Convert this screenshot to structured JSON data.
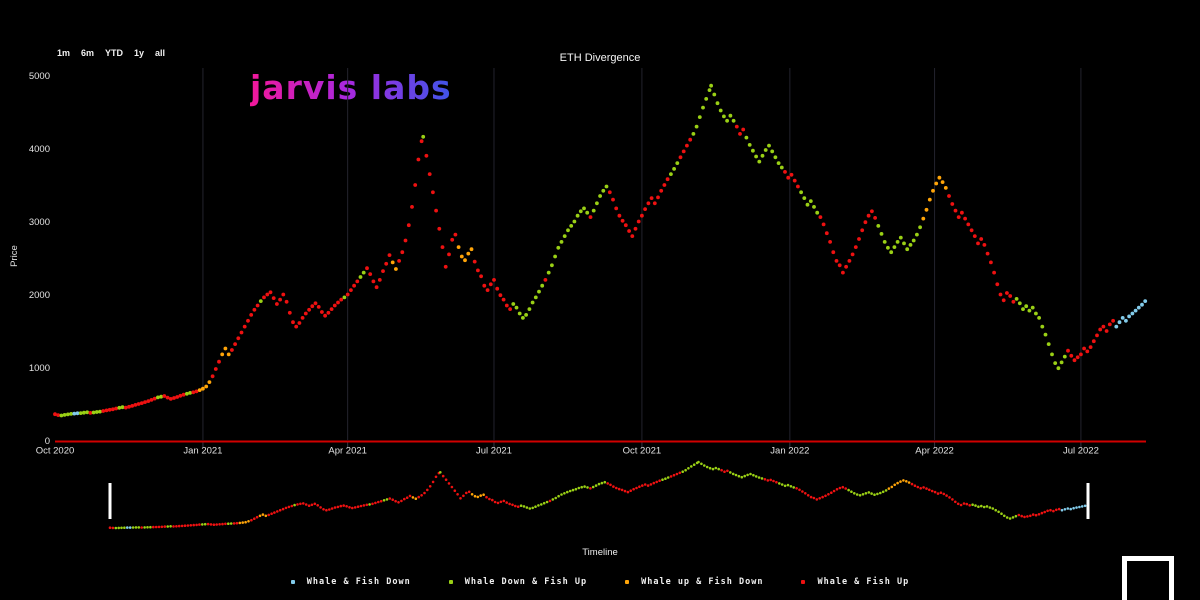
{
  "toolbar": {
    "ranges": [
      "1m",
      "6m",
      "YTD",
      "1y",
      "all"
    ]
  },
  "logo": {
    "text": "jarvis labs"
  },
  "timeline": {
    "label": "Timeline"
  },
  "chart_data": {
    "type": "scatter",
    "title": "ETH Divergence",
    "ylabel": "Price",
    "ylim": [
      0,
      5000
    ],
    "y_ticks": [
      0,
      1000,
      2000,
      3000,
      4000,
      5000
    ],
    "x_ticks": [
      {
        "label": "Oct 2020",
        "day": 0
      },
      {
        "label": "Jan 2021",
        "day": 92
      },
      {
        "label": "Apr 2021",
        "day": 182
      },
      {
        "label": "Jul 2021",
        "day": 273
      },
      {
        "label": "Oct 2021",
        "day": 365
      },
      {
        "label": "Jan 2022",
        "day": 457
      },
      {
        "label": "Apr 2022",
        "day": 547
      },
      {
        "label": "Jul 2022",
        "day": 638
      }
    ],
    "axis_line_color": "#d10000",
    "grid_color": "#23232d",
    "legend": [
      {
        "label": "Whale & Fish Down",
        "color": "#82cbea"
      },
      {
        "label": "Whale Down & Fish Up",
        "color": "#9ad015"
      },
      {
        "label": "Whale up & Fish Down",
        "color": "#ffa408"
      },
      {
        "label": "Whale & Fish Up",
        "color": "#ee1111"
      }
    ],
    "point_format": [
      "day_offset_from_first_tick",
      "price",
      "legend_category_index"
    ],
    "points": [
      [
        0,
        360,
        3
      ],
      [
        2,
        348,
        3
      ],
      [
        4,
        342,
        1
      ],
      [
        6,
        350,
        1
      ],
      [
        8,
        358,
        1
      ],
      [
        10,
        364,
        1
      ],
      [
        12,
        368,
        0
      ],
      [
        14,
        372,
        0
      ],
      [
        16,
        376,
        1
      ],
      [
        18,
        381,
        1
      ],
      [
        20,
        386,
        1
      ],
      [
        22,
        378,
        3
      ],
      [
        24,
        383,
        1
      ],
      [
        26,
        390,
        1
      ],
      [
        28,
        396,
        1
      ],
      [
        30,
        404,
        3
      ],
      [
        32,
        412,
        3
      ],
      [
        34,
        420,
        3
      ],
      [
        36,
        428,
        3
      ],
      [
        38,
        438,
        3
      ],
      [
        40,
        448,
        1
      ],
      [
        42,
        456,
        1
      ],
      [
        44,
        450,
        3
      ],
      [
        46,
        462,
        3
      ],
      [
        48,
        474,
        3
      ],
      [
        50,
        488,
        3
      ],
      [
        52,
        500,
        3
      ],
      [
        54,
        512,
        3
      ],
      [
        56,
        526,
        3
      ],
      [
        58,
        540,
        3
      ],
      [
        60,
        556,
        3
      ],
      [
        62,
        574,
        3
      ],
      [
        64,
        590,
        1
      ],
      [
        66,
        600,
        1
      ],
      [
        68,
        610,
        3
      ],
      [
        70,
        588,
        3
      ],
      [
        72,
        570,
        3
      ],
      [
        74,
        582,
        3
      ],
      [
        76,
        596,
        3
      ],
      [
        78,
        612,
        3
      ],
      [
        80,
        628,
        3
      ],
      [
        82,
        640,
        1
      ],
      [
        84,
        652,
        1
      ],
      [
        86,
        660,
        3
      ],
      [
        88,
        672,
        3
      ],
      [
        90,
        690,
        2
      ],
      [
        92,
        710,
        2
      ],
      [
        94,
        740,
        2
      ],
      [
        96,
        800,
        2
      ],
      [
        98,
        880,
        3
      ],
      [
        100,
        980,
        3
      ],
      [
        102,
        1080,
        3
      ],
      [
        104,
        1180,
        2
      ],
      [
        106,
        1260,
        2
      ],
      [
        108,
        1180,
        2
      ],
      [
        110,
        1240,
        3
      ],
      [
        112,
        1320,
        3
      ],
      [
        114,
        1400,
        3
      ],
      [
        116,
        1480,
        3
      ],
      [
        118,
        1560,
        3
      ],
      [
        120,
        1640,
        3
      ],
      [
        122,
        1720,
        3
      ],
      [
        124,
        1790,
        3
      ],
      [
        126,
        1850,
        3
      ],
      [
        128,
        1910,
        1
      ],
      [
        130,
        1960,
        3
      ],
      [
        132,
        2000,
        3
      ],
      [
        134,
        2030,
        3
      ],
      [
        136,
        1950,
        3
      ],
      [
        138,
        1870,
        3
      ],
      [
        140,
        1930,
        3
      ],
      [
        142,
        2000,
        3
      ],
      [
        144,
        1900,
        3
      ],
      [
        146,
        1750,
        3
      ],
      [
        148,
        1620,
        3
      ],
      [
        150,
        1560,
        3
      ],
      [
        152,
        1610,
        3
      ],
      [
        154,
        1680,
        3
      ],
      [
        156,
        1740,
        3
      ],
      [
        158,
        1790,
        3
      ],
      [
        160,
        1840,
        3
      ],
      [
        162,
        1880,
        3
      ],
      [
        164,
        1830,
        3
      ],
      [
        166,
        1760,
        3
      ],
      [
        168,
        1710,
        3
      ],
      [
        170,
        1750,
        3
      ],
      [
        172,
        1800,
        3
      ],
      [
        174,
        1850,
        3
      ],
      [
        176,
        1890,
        3
      ],
      [
        178,
        1930,
        3
      ],
      [
        180,
        1960,
        1
      ],
      [
        182,
        2000,
        3
      ],
      [
        184,
        2060,
        3
      ],
      [
        186,
        2120,
        3
      ],
      [
        188,
        2180,
        3
      ],
      [
        190,
        2240,
        1
      ],
      [
        192,
        2300,
        1
      ],
      [
        194,
        2360,
        3
      ],
      [
        196,
        2280,
        3
      ],
      [
        198,
        2180,
        3
      ],
      [
        200,
        2100,
        3
      ],
      [
        202,
        2200,
        3
      ],
      [
        204,
        2320,
        3
      ],
      [
        206,
        2420,
        3
      ],
      [
        208,
        2540,
        3
      ],
      [
        210,
        2440,
        2
      ],
      [
        212,
        2350,
        2
      ],
      [
        214,
        2460,
        3
      ],
      [
        216,
        2580,
        3
      ],
      [
        218,
        2740,
        3
      ],
      [
        220,
        2950,
        3
      ],
      [
        222,
        3200,
        3
      ],
      [
        224,
        3500,
        3
      ],
      [
        226,
        3850,
        3
      ],
      [
        228,
        4100,
        3
      ],
      [
        229,
        4160,
        1
      ],
      [
        231,
        3900,
        3
      ],
      [
        233,
        3650,
        3
      ],
      [
        235,
        3400,
        3
      ],
      [
        237,
        3150,
        3
      ],
      [
        239,
        2900,
        3
      ],
      [
        241,
        2650,
        3
      ],
      [
        243,
        2380,
        3
      ],
      [
        245,
        2550,
        3
      ],
      [
        247,
        2750,
        3
      ],
      [
        249,
        2820,
        3
      ],
      [
        251,
        2650,
        2
      ],
      [
        253,
        2520,
        2
      ],
      [
        255,
        2470,
        2
      ],
      [
        257,
        2560,
        2
      ],
      [
        259,
        2620,
        2
      ],
      [
        261,
        2450,
        3
      ],
      [
        263,
        2330,
        3
      ],
      [
        265,
        2250,
        3
      ],
      [
        267,
        2120,
        3
      ],
      [
        269,
        2060,
        3
      ],
      [
        271,
        2140,
        3
      ],
      [
        273,
        2200,
        3
      ],
      [
        275,
        2080,
        3
      ],
      [
        277,
        1990,
        3
      ],
      [
        279,
        1930,
        3
      ],
      [
        281,
        1850,
        3
      ],
      [
        283,
        1800,
        3
      ],
      [
        285,
        1870,
        1
      ],
      [
        287,
        1820,
        1
      ],
      [
        289,
        1740,
        1
      ],
      [
        291,
        1680,
        1
      ],
      [
        293,
        1720,
        1
      ],
      [
        295,
        1800,
        1
      ],
      [
        297,
        1890,
        1
      ],
      [
        299,
        1960,
        1
      ],
      [
        301,
        2040,
        1
      ],
      [
        303,
        2120,
        1
      ],
      [
        305,
        2200,
        3
      ],
      [
        307,
        2300,
        1
      ],
      [
        309,
        2400,
        1
      ],
      [
        311,
        2520,
        1
      ],
      [
        313,
        2640,
        1
      ],
      [
        315,
        2720,
        1
      ],
      [
        317,
        2800,
        1
      ],
      [
        319,
        2880,
        1
      ],
      [
        321,
        2940,
        1
      ],
      [
        323,
        3000,
        1
      ],
      [
        325,
        3080,
        1
      ],
      [
        327,
        3140,
        1
      ],
      [
        329,
        3180,
        1
      ],
      [
        331,
        3120,
        1
      ],
      [
        333,
        3060,
        3
      ],
      [
        335,
        3150,
        1
      ],
      [
        337,
        3250,
        1
      ],
      [
        339,
        3350,
        1
      ],
      [
        341,
        3420,
        1
      ],
      [
        343,
        3480,
        1
      ],
      [
        345,
        3400,
        3
      ],
      [
        347,
        3300,
        3
      ],
      [
        349,
        3180,
        3
      ],
      [
        351,
        3080,
        3
      ],
      [
        353,
        3010,
        3
      ],
      [
        355,
        2950,
        3
      ],
      [
        357,
        2870,
        3
      ],
      [
        359,
        2800,
        3
      ],
      [
        361,
        2900,
        3
      ],
      [
        363,
        3000,
        3
      ],
      [
        365,
        3080,
        3
      ],
      [
        367,
        3170,
        3
      ],
      [
        369,
        3250,
        3
      ],
      [
        371,
        3320,
        3
      ],
      [
        373,
        3250,
        3
      ],
      [
        375,
        3330,
        3
      ],
      [
        377,
        3420,
        3
      ],
      [
        379,
        3500,
        3
      ],
      [
        381,
        3580,
        3
      ],
      [
        383,
        3650,
        1
      ],
      [
        385,
        3720,
        1
      ],
      [
        387,
        3800,
        1
      ],
      [
        389,
        3880,
        3
      ],
      [
        391,
        3960,
        3
      ],
      [
        393,
        4040,
        3
      ],
      [
        395,
        4120,
        3
      ],
      [
        397,
        4200,
        1
      ],
      [
        399,
        4300,
        1
      ],
      [
        401,
        4430,
        1
      ],
      [
        403,
        4560,
        1
      ],
      [
        405,
        4680,
        1
      ],
      [
        407,
        4800,
        1
      ],
      [
        408,
        4860,
        1
      ],
      [
        410,
        4740,
        1
      ],
      [
        412,
        4620,
        1
      ],
      [
        414,
        4520,
        1
      ],
      [
        416,
        4440,
        1
      ],
      [
        418,
        4380,
        1
      ],
      [
        420,
        4450,
        1
      ],
      [
        422,
        4380,
        1
      ],
      [
        424,
        4300,
        3
      ],
      [
        426,
        4200,
        3
      ],
      [
        428,
        4260,
        3
      ],
      [
        430,
        4150,
        1
      ],
      [
        432,
        4050,
        1
      ],
      [
        434,
        3970,
        1
      ],
      [
        436,
        3890,
        1
      ],
      [
        438,
        3820,
        1
      ],
      [
        440,
        3900,
        1
      ],
      [
        442,
        3980,
        1
      ],
      [
        444,
        4040,
        1
      ],
      [
        446,
        3960,
        1
      ],
      [
        448,
        3880,
        1
      ],
      [
        450,
        3800,
        1
      ],
      [
        452,
        3740,
        1
      ],
      [
        454,
        3680,
        3
      ],
      [
        456,
        3600,
        3
      ],
      [
        458,
        3640,
        3
      ],
      [
        460,
        3560,
        3
      ],
      [
        462,
        3480,
        3
      ],
      [
        464,
        3400,
        1
      ],
      [
        466,
        3320,
        1
      ],
      [
        468,
        3230,
        1
      ],
      [
        470,
        3280,
        1
      ],
      [
        472,
        3200,
        1
      ],
      [
        474,
        3120,
        1
      ],
      [
        476,
        3060,
        3
      ],
      [
        478,
        2960,
        3
      ],
      [
        480,
        2840,
        3
      ],
      [
        482,
        2720,
        3
      ],
      [
        484,
        2580,
        3
      ],
      [
        486,
        2460,
        3
      ],
      [
        488,
        2400,
        3
      ],
      [
        490,
        2300,
        3
      ],
      [
        492,
        2380,
        3
      ],
      [
        494,
        2460,
        3
      ],
      [
        496,
        2550,
        3
      ],
      [
        498,
        2650,
        3
      ],
      [
        500,
        2760,
        3
      ],
      [
        502,
        2880,
        3
      ],
      [
        504,
        2990,
        3
      ],
      [
        506,
        3080,
        3
      ],
      [
        508,
        3140,
        3
      ],
      [
        510,
        3050,
        3
      ],
      [
        512,
        2940,
        1
      ],
      [
        514,
        2830,
        1
      ],
      [
        516,
        2720,
        1
      ],
      [
        518,
        2640,
        1
      ],
      [
        520,
        2580,
        1
      ],
      [
        522,
        2650,
        1
      ],
      [
        524,
        2720,
        1
      ],
      [
        526,
        2780,
        1
      ],
      [
        528,
        2700,
        1
      ],
      [
        530,
        2620,
        1
      ],
      [
        532,
        2680,
        1
      ],
      [
        534,
        2740,
        1
      ],
      [
        536,
        2820,
        1
      ],
      [
        538,
        2920,
        1
      ],
      [
        540,
        3040,
        2
      ],
      [
        542,
        3160,
        2
      ],
      [
        544,
        3300,
        2
      ],
      [
        546,
        3420,
        2
      ],
      [
        548,
        3520,
        2
      ],
      [
        550,
        3600,
        2
      ],
      [
        552,
        3540,
        2
      ],
      [
        554,
        3460,
        2
      ],
      [
        556,
        3350,
        3
      ],
      [
        558,
        3240,
        3
      ],
      [
        560,
        3150,
        3
      ],
      [
        562,
        3060,
        3
      ],
      [
        564,
        3120,
        3
      ],
      [
        566,
        3040,
        3
      ],
      [
        568,
        2960,
        3
      ],
      [
        570,
        2880,
        3
      ],
      [
        572,
        2800,
        3
      ],
      [
        574,
        2700,
        3
      ],
      [
        576,
        2760,
        3
      ],
      [
        578,
        2680,
        3
      ],
      [
        580,
        2560,
        3
      ],
      [
        582,
        2440,
        3
      ],
      [
        584,
        2300,
        3
      ],
      [
        586,
        2140,
        3
      ],
      [
        588,
        2000,
        3
      ],
      [
        590,
        1920,
        3
      ],
      [
        592,
        2020,
        3
      ],
      [
        594,
        1980,
        3
      ],
      [
        596,
        1900,
        3
      ],
      [
        598,
        1940,
        1
      ],
      [
        600,
        1880,
        1
      ],
      [
        602,
        1800,
        1
      ],
      [
        604,
        1840,
        1
      ],
      [
        606,
        1780,
        1
      ],
      [
        608,
        1820,
        1
      ],
      [
        610,
        1740,
        1
      ],
      [
        612,
        1680,
        1
      ],
      [
        614,
        1560,
        1
      ],
      [
        616,
        1450,
        1
      ],
      [
        618,
        1320,
        1
      ],
      [
        620,
        1180,
        1
      ],
      [
        622,
        1060,
        1
      ],
      [
        624,
        990,
        1
      ],
      [
        626,
        1070,
        1
      ],
      [
        628,
        1150,
        1
      ],
      [
        630,
        1230,
        3
      ],
      [
        632,
        1160,
        3
      ],
      [
        634,
        1100,
        3
      ],
      [
        636,
        1140,
        3
      ],
      [
        638,
        1180,
        3
      ],
      [
        640,
        1260,
        3
      ],
      [
        642,
        1220,
        3
      ],
      [
        644,
        1280,
        3
      ],
      [
        646,
        1360,
        3
      ],
      [
        648,
        1440,
        3
      ],
      [
        650,
        1520,
        3
      ],
      [
        652,
        1560,
        3
      ],
      [
        654,
        1500,
        3
      ],
      [
        656,
        1590,
        3
      ],
      [
        658,
        1640,
        3
      ],
      [
        660,
        1560,
        0
      ],
      [
        662,
        1620,
        0
      ],
      [
        664,
        1680,
        0
      ],
      [
        666,
        1640,
        0
      ],
      [
        668,
        1700,
        0
      ],
      [
        670,
        1740,
        0
      ],
      [
        672,
        1780,
        0
      ],
      [
        674,
        1820,
        0
      ],
      [
        676,
        1860,
        0
      ],
      [
        678,
        1910,
        0
      ]
    ]
  }
}
